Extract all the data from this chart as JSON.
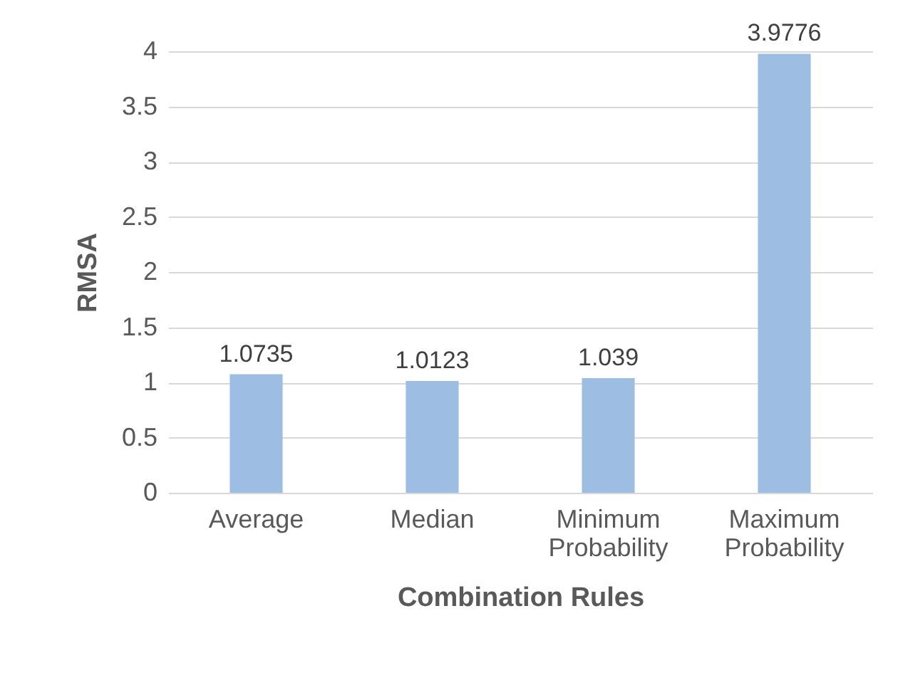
{
  "chart_data": {
    "type": "bar",
    "xlabel": "Combination Rules",
    "ylabel": "RMSA",
    "categories": [
      "Average",
      "Median",
      "Minimum Probability",
      "Maximum Probability"
    ],
    "values": [
      1.0735,
      1.0123,
      1.039,
      3.9776
    ],
    "color": "#9dbde3",
    "ylim": [
      0,
      4
    ],
    "yticks": [
      0,
      0.5,
      1,
      1.5,
      2,
      2.5,
      3,
      3.5,
      4
    ],
    "grid": "y",
    "data_labels": true
  }
}
